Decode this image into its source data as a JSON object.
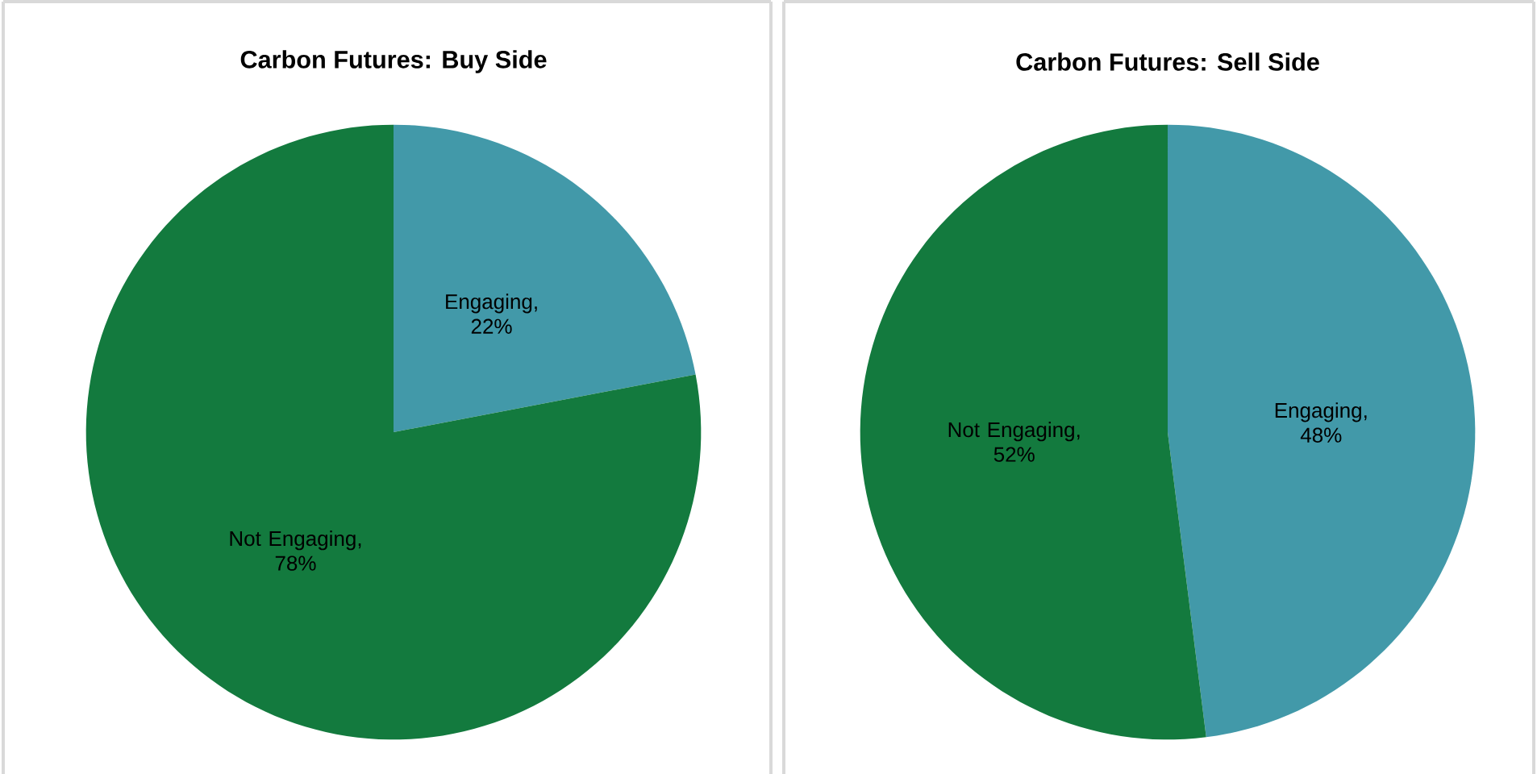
{
  "chart_data": [
    {
      "type": "pie",
      "title": "Carbon Futures: Buy Side",
      "categories": [
        "Engaging",
        "Not Engaging"
      ],
      "values": [
        22,
        78
      ],
      "colors": [
        "#4299a9",
        "#137a3e"
      ],
      "value_labels": [
        ", 22%",
        ", 78%"
      ]
    },
    {
      "type": "pie",
      "title": "Carbon Futures: Sell Side",
      "categories": [
        "Engaging",
        "Not Engaging"
      ],
      "values": [
        48,
        52
      ],
      "colors": [
        "#4299a9",
        "#137a3e"
      ],
      "value_labels": [
        ", 48%",
        ", 52%"
      ]
    }
  ]
}
